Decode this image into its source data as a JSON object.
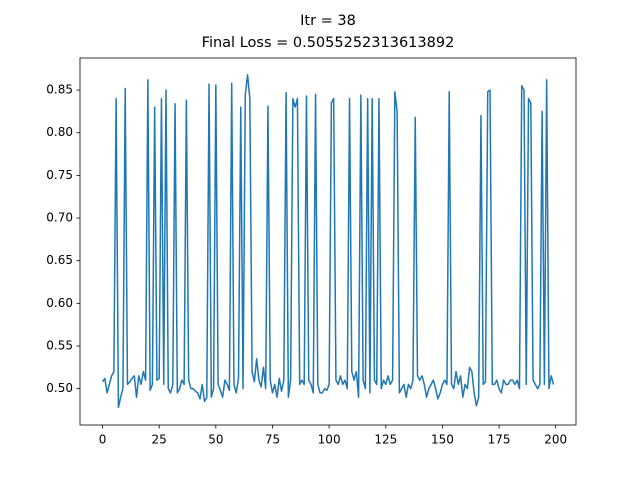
{
  "chart_data": {
    "type": "line",
    "title": "Itr = 38",
    "subtitle": "Final Loss = 0.5055252313613892",
    "color": "#1f77b4",
    "grid": false,
    "xlim": [
      -9.95,
      208.95
    ],
    "ylim": [
      0.4574,
      0.8876
    ],
    "xticks": [
      0,
      25,
      50,
      75,
      100,
      125,
      150,
      175,
      200
    ],
    "yticks": [
      {
        "value": 0.5,
        "label": "0.50"
      },
      0.55,
      {
        "value": 0.6,
        "label": "0.60"
      },
      0.65,
      {
        "value": 0.7,
        "label": "0.70"
      },
      0.75,
      {
        "value": 0.8,
        "label": "0.80"
      },
      0.85
    ],
    "x": [
      0,
      1,
      2,
      3,
      4,
      5,
      6,
      7,
      8,
      9,
      10,
      11,
      12,
      13,
      14,
      15,
      16,
      17,
      18,
      19,
      20,
      21,
      22,
      23,
      24,
      25,
      26,
      27,
      28,
      29,
      30,
      31,
      32,
      33,
      34,
      35,
      36,
      37,
      38,
      39,
      40,
      41,
      42,
      43,
      44,
      45,
      46,
      47,
      48,
      49,
      50,
      51,
      52,
      53,
      54,
      55,
      56,
      57,
      58,
      59,
      60,
      61,
      62,
      63,
      64,
      65,
      66,
      67,
      68,
      69,
      70,
      71,
      72,
      73,
      74,
      75,
      76,
      77,
      78,
      79,
      80,
      81,
      82,
      83,
      84,
      85,
      86,
      87,
      88,
      89,
      90,
      91,
      92,
      93,
      94,
      95,
      96,
      97,
      98,
      99,
      100,
      101,
      102,
      103,
      104,
      105,
      106,
      107,
      108,
      109,
      110,
      111,
      112,
      113,
      114,
      115,
      116,
      117,
      118,
      119,
      120,
      121,
      122,
      123,
      124,
      125,
      126,
      127,
      128,
      129,
      130,
      131,
      132,
      133,
      134,
      135,
      136,
      137,
      138,
      139,
      140,
      141,
      142,
      143,
      144,
      145,
      146,
      147,
      148,
      149,
      150,
      151,
      152,
      153,
      154,
      155,
      156,
      157,
      158,
      159,
      160,
      161,
      162,
      163,
      164,
      165,
      166,
      167,
      168,
      169,
      170,
      171,
      172,
      173,
      174,
      175,
      176,
      177,
      178,
      179,
      180,
      181,
      182,
      183,
      184,
      185,
      186,
      187,
      188,
      189,
      190,
      191,
      192,
      193,
      194,
      195,
      196,
      197,
      198,
      199
    ],
    "values": [
      0.508,
      0.512,
      0.495,
      0.505,
      0.515,
      0.52,
      0.84,
      0.478,
      0.49,
      0.5,
      0.852,
      0.505,
      0.508,
      0.512,
      0.515,
      0.49,
      0.515,
      0.505,
      0.52,
      0.51,
      0.862,
      0.498,
      0.505,
      0.83,
      0.51,
      0.512,
      0.84,
      0.505,
      0.85,
      0.5,
      0.495,
      0.505,
      0.834,
      0.495,
      0.5,
      0.51,
      0.505,
      0.838,
      0.51,
      0.5,
      0.5,
      0.497,
      0.495,
      0.488,
      0.505,
      0.485,
      0.49,
      0.857,
      0.49,
      0.5,
      0.856,
      0.505,
      0.498,
      0.49,
      0.51,
      0.505,
      0.498,
      0.858,
      0.505,
      0.495,
      0.512,
      0.83,
      0.5,
      0.845,
      0.868,
      0.84,
      0.52,
      0.508,
      0.535,
      0.51,
      0.502,
      0.525,
      0.5,
      0.831,
      0.51,
      0.495,
      0.505,
      0.49,
      0.512,
      0.497,
      0.51,
      0.847,
      0.49,
      0.51,
      0.84,
      0.83,
      0.84,
      0.505,
      0.51,
      0.505,
      0.843,
      0.51,
      0.505,
      0.495,
      0.845,
      0.505,
      0.495,
      0.495,
      0.5,
      0.498,
      0.505,
      0.835,
      0.84,
      0.51,
      0.505,
      0.515,
      0.505,
      0.51,
      0.5,
      0.84,
      0.52,
      0.51,
      0.52,
      0.49,
      0.844,
      0.51,
      0.5,
      0.84,
      0.495,
      0.84,
      0.51,
      0.505,
      0.84,
      0.5,
      0.51,
      0.505,
      0.515,
      0.505,
      0.51,
      0.848,
      0.825,
      0.495,
      0.5,
      0.505,
      0.49,
      0.505,
      0.5,
      0.51,
      0.818,
      0.515,
      0.51,
      0.515,
      0.505,
      0.49,
      0.5,
      0.505,
      0.51,
      0.5,
      0.488,
      0.495,
      0.505,
      0.51,
      0.505,
      0.848,
      0.505,
      0.5,
      0.52,
      0.505,
      0.515,
      0.49,
      0.505,
      0.5,
      0.525,
      0.52,
      0.495,
      0.48,
      0.49,
      0.82,
      0.505,
      0.508,
      0.848,
      0.85,
      0.505,
      0.505,
      0.51,
      0.5,
      0.495,
      0.51,
      0.505,
      0.505,
      0.51,
      0.51,
      0.505,
      0.51,
      0.5,
      0.855,
      0.85,
      0.505,
      0.84,
      0.835,
      0.51,
      0.505,
      0.5,
      0.505,
      0.825,
      0.505,
      0.862,
      0.5,
      0.515,
      0.505
    ]
  }
}
